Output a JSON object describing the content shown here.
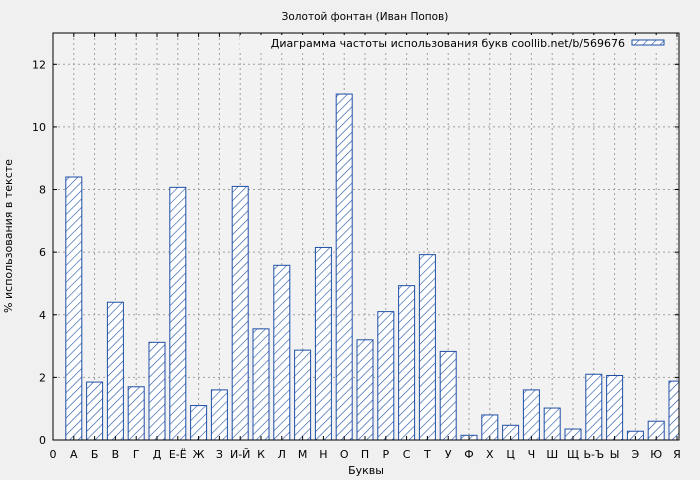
{
  "chart_data": {
    "type": "bar",
    "title": "Золотой фонтан (Иван Попов)",
    "xlabel": "Буквы",
    "ylabel": "% использования в тексте",
    "ylim": [
      0,
      13
    ],
    "yticks": [
      0,
      2,
      4,
      6,
      8,
      10,
      12
    ],
    "grid": true,
    "legend_position": "top-right",
    "series": [
      {
        "name": "Диаграмма частоты использования букв coollib.net/b/569676",
        "color": "#1f4fa5"
      }
    ],
    "x_tick_labels": [
      "0",
      "А",
      "Б",
      "В",
      "Г",
      "Д",
      "Е-Ё",
      "Ж",
      "З",
      "И-Й",
      "К",
      "Л",
      "М",
      "Н",
      "О",
      "П",
      "Р",
      "С",
      "Т",
      "У",
      "Ф",
      "Х",
      "Ц",
      "Ч",
      "Ш",
      "Щ",
      "Ь-Ъ",
      "Ы",
      "Э",
      "Ю",
      "Я"
    ],
    "categories": [
      "А",
      "Б",
      "В",
      "Г",
      "Д",
      "Е-Ё",
      "Ж",
      "З",
      "И-Й",
      "К",
      "Л",
      "М",
      "Н",
      "О",
      "П",
      "Р",
      "С",
      "Т",
      "У",
      "Ф",
      "Х",
      "Ц",
      "Ч",
      "Ш",
      "Щ",
      "Ь-Ъ",
      "Ы",
      "Э",
      "Ю",
      "Я"
    ],
    "values": [
      8.4,
      1.85,
      4.4,
      1.7,
      3.12,
      8.07,
      1.1,
      1.6,
      8.1,
      3.55,
      5.58,
      2.87,
      6.15,
      11.05,
      3.2,
      4.1,
      4.93,
      5.92,
      2.83,
      0.15,
      0.8,
      0.47,
      1.6,
      1.02,
      0.35,
      2.1,
      2.06,
      0.28,
      0.6,
      1.88
    ]
  }
}
